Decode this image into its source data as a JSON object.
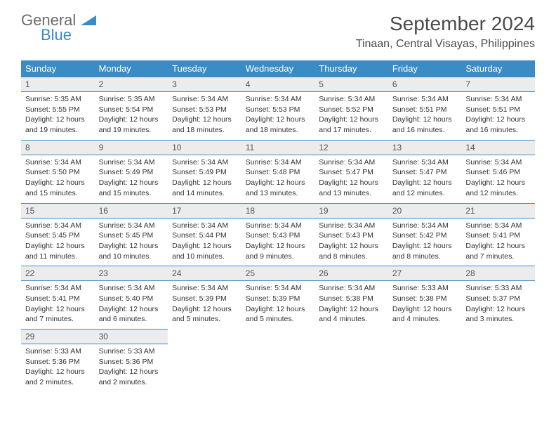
{
  "logo": {
    "general": "General",
    "blue": "Blue"
  },
  "title": "September 2024",
  "location": "Tinaan, Central Visayas, Philippines",
  "colors": {
    "header_bg": "#3b8bc4",
    "header_text": "#ffffff",
    "daynum_bg": "#ececec",
    "border": "#3b8bc4",
    "text": "#333333",
    "logo_gray": "#6b6b6b",
    "logo_blue": "#3b8bc4"
  },
  "weekdays": [
    "Sunday",
    "Monday",
    "Tuesday",
    "Wednesday",
    "Thursday",
    "Friday",
    "Saturday"
  ],
  "weeks": [
    [
      {
        "n": "1",
        "sr": "5:35 AM",
        "ss": "5:55 PM",
        "dl": "12 hours and 19 minutes."
      },
      {
        "n": "2",
        "sr": "5:35 AM",
        "ss": "5:54 PM",
        "dl": "12 hours and 19 minutes."
      },
      {
        "n": "3",
        "sr": "5:34 AM",
        "ss": "5:53 PM",
        "dl": "12 hours and 18 minutes."
      },
      {
        "n": "4",
        "sr": "5:34 AM",
        "ss": "5:53 PM",
        "dl": "12 hours and 18 minutes."
      },
      {
        "n": "5",
        "sr": "5:34 AM",
        "ss": "5:52 PM",
        "dl": "12 hours and 17 minutes."
      },
      {
        "n": "6",
        "sr": "5:34 AM",
        "ss": "5:51 PM",
        "dl": "12 hours and 16 minutes."
      },
      {
        "n": "7",
        "sr": "5:34 AM",
        "ss": "5:51 PM",
        "dl": "12 hours and 16 minutes."
      }
    ],
    [
      {
        "n": "8",
        "sr": "5:34 AM",
        "ss": "5:50 PM",
        "dl": "12 hours and 15 minutes."
      },
      {
        "n": "9",
        "sr": "5:34 AM",
        "ss": "5:49 PM",
        "dl": "12 hours and 15 minutes."
      },
      {
        "n": "10",
        "sr": "5:34 AM",
        "ss": "5:49 PM",
        "dl": "12 hours and 14 minutes."
      },
      {
        "n": "11",
        "sr": "5:34 AM",
        "ss": "5:48 PM",
        "dl": "12 hours and 13 minutes."
      },
      {
        "n": "12",
        "sr": "5:34 AM",
        "ss": "5:47 PM",
        "dl": "12 hours and 13 minutes."
      },
      {
        "n": "13",
        "sr": "5:34 AM",
        "ss": "5:47 PM",
        "dl": "12 hours and 12 minutes."
      },
      {
        "n": "14",
        "sr": "5:34 AM",
        "ss": "5:46 PM",
        "dl": "12 hours and 12 minutes."
      }
    ],
    [
      {
        "n": "15",
        "sr": "5:34 AM",
        "ss": "5:45 PM",
        "dl": "12 hours and 11 minutes."
      },
      {
        "n": "16",
        "sr": "5:34 AM",
        "ss": "5:45 PM",
        "dl": "12 hours and 10 minutes."
      },
      {
        "n": "17",
        "sr": "5:34 AM",
        "ss": "5:44 PM",
        "dl": "12 hours and 10 minutes."
      },
      {
        "n": "18",
        "sr": "5:34 AM",
        "ss": "5:43 PM",
        "dl": "12 hours and 9 minutes."
      },
      {
        "n": "19",
        "sr": "5:34 AM",
        "ss": "5:43 PM",
        "dl": "12 hours and 8 minutes."
      },
      {
        "n": "20",
        "sr": "5:34 AM",
        "ss": "5:42 PM",
        "dl": "12 hours and 8 minutes."
      },
      {
        "n": "21",
        "sr": "5:34 AM",
        "ss": "5:41 PM",
        "dl": "12 hours and 7 minutes."
      }
    ],
    [
      {
        "n": "22",
        "sr": "5:34 AM",
        "ss": "5:41 PM",
        "dl": "12 hours and 7 minutes."
      },
      {
        "n": "23",
        "sr": "5:34 AM",
        "ss": "5:40 PM",
        "dl": "12 hours and 6 minutes."
      },
      {
        "n": "24",
        "sr": "5:34 AM",
        "ss": "5:39 PM",
        "dl": "12 hours and 5 minutes."
      },
      {
        "n": "25",
        "sr": "5:34 AM",
        "ss": "5:39 PM",
        "dl": "12 hours and 5 minutes."
      },
      {
        "n": "26",
        "sr": "5:34 AM",
        "ss": "5:38 PM",
        "dl": "12 hours and 4 minutes."
      },
      {
        "n": "27",
        "sr": "5:33 AM",
        "ss": "5:38 PM",
        "dl": "12 hours and 4 minutes."
      },
      {
        "n": "28",
        "sr": "5:33 AM",
        "ss": "5:37 PM",
        "dl": "12 hours and 3 minutes."
      }
    ],
    [
      {
        "n": "29",
        "sr": "5:33 AM",
        "ss": "5:36 PM",
        "dl": "12 hours and 2 minutes."
      },
      {
        "n": "30",
        "sr": "5:33 AM",
        "ss": "5:36 PM",
        "dl": "12 hours and 2 minutes."
      },
      null,
      null,
      null,
      null,
      null
    ]
  ],
  "labels": {
    "sunrise": "Sunrise:",
    "sunset": "Sunset:",
    "daylight": "Daylight:"
  }
}
